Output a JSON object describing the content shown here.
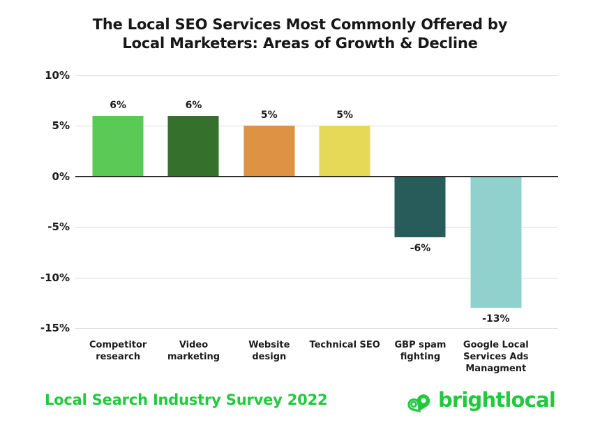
{
  "title": {
    "line1": "The Local SEO Services Most Commonly Offered by",
    "line2": "Local Marketers: Areas of Growth & Decline"
  },
  "chart_data": {
    "type": "bar",
    "title": "The Local SEO Services Most Commonly Offered by Local Marketers: Areas of Growth & Decline",
    "categories": [
      "Competitor research",
      "Video marketing",
      "Website design",
      "Technical SEO",
      "GBP spam fighting",
      "Google Local Services Ads Managment"
    ],
    "values": [
      6,
      6,
      5,
      5,
      -6,
      -13
    ],
    "value_labels": [
      "6%",
      "6%",
      "5%",
      "5%",
      "-6%",
      "-13%"
    ],
    "bar_colors": [
      "#5bc956",
      "#35702d",
      "#de9243",
      "#e5d957",
      "#275c5b",
      "#90d1ce"
    ],
    "ylim": [
      -15,
      10
    ],
    "y_ticks": [
      10,
      5,
      0,
      -5,
      -10,
      -15
    ],
    "y_tick_labels": [
      "10%",
      "5%",
      "0%",
      "-5%",
      "-10%",
      "-15%"
    ],
    "xlabel": "",
    "ylabel": "",
    "grid": true,
    "legend_position": "none"
  },
  "footer": {
    "survey_label": "Local Search Industry Survey 2022",
    "brand": "brightlocal"
  },
  "colors": {
    "accent_green": "#21c93e",
    "text_dark": "#1c1c1c",
    "gridline": "#d9d9d9",
    "zero_line": "#2e2e2e",
    "background": "#ffffff"
  }
}
